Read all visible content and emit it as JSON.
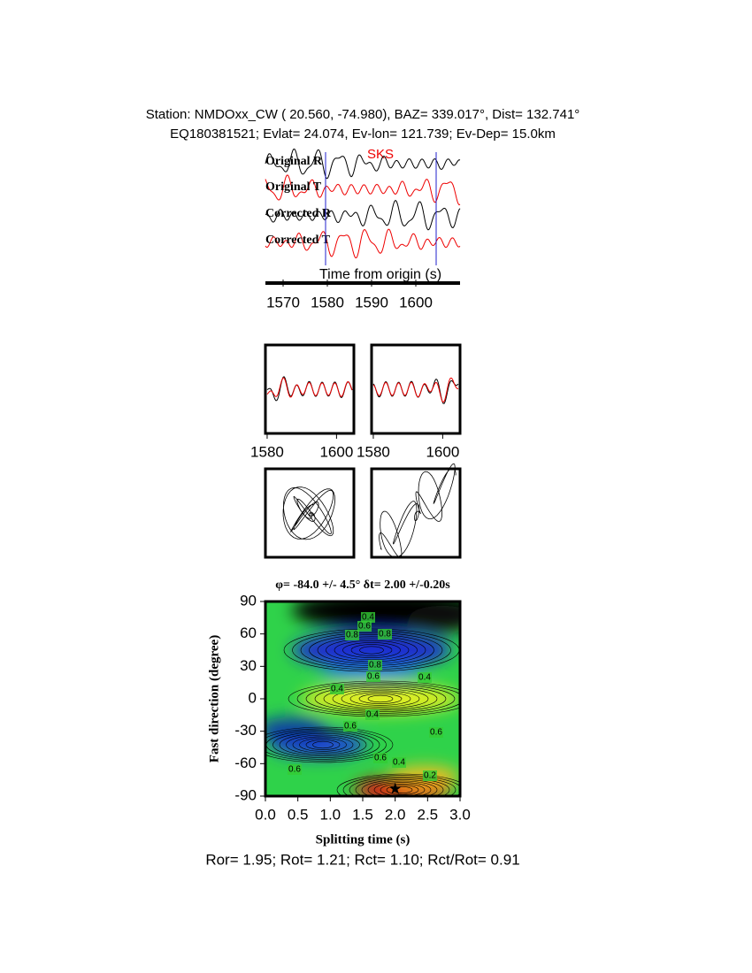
{
  "header": {
    "line1": "Station: NMDOxx_CW (  20.560,  -74.980), BAZ=  339.017°, Dist=  132.741°",
    "line2": "EQ180381521; Evlat=  24.074, Ev-lon= 121.739; Ev-Dep= 15.0km"
  },
  "waveforms": {
    "phase": "SKS",
    "traces": [
      "Original R",
      "Original T",
      "Corrected R",
      "Corrected T"
    ],
    "xlabel": "Time from origin (s)",
    "xlim": [
      1566,
      1610
    ],
    "xticks": [
      1570,
      1580,
      1590,
      1600
    ]
  },
  "particle_time": {
    "xlim": [
      1579.5,
      1605
    ],
    "xticks": [
      1580,
      1600
    ]
  },
  "grid_search": {
    "title": "φ= -84.0 +/- 4.5° δt= 2.00 +/-0.20s",
    "xlabel": "Splitting time (s)",
    "ylabel": "Fast direction (degree)",
    "xlim": [
      0,
      3
    ],
    "ylim": [
      -90,
      90
    ],
    "xticks": [
      {
        "value": 0,
        "label": "0.0"
      },
      {
        "value": 0.5,
        "label": "0.5"
      },
      {
        "value": 1,
        "label": "1.0"
      },
      {
        "value": 1.5,
        "label": "1.5"
      },
      {
        "value": 2,
        "label": "2.0"
      },
      {
        "value": 2.5,
        "label": "2.5"
      },
      {
        "value": 3,
        "label": "3.0"
      }
    ],
    "yticks": [
      -90,
      -60,
      -30,
      0,
      30,
      60,
      90
    ],
    "contour_labels": [
      "0.4",
      "0.6",
      "0.8",
      "0.8",
      "0.8",
      "0.6",
      "0.4",
      "0.4",
      "0.4",
      "0.6",
      "0.6",
      "0.6",
      "0.4",
      "0.6",
      "0.2"
    ]
  },
  "footer": "Ror= 1.95; Rot= 1.21; Rct= 1.10; Rct/Rot= 0.91"
}
